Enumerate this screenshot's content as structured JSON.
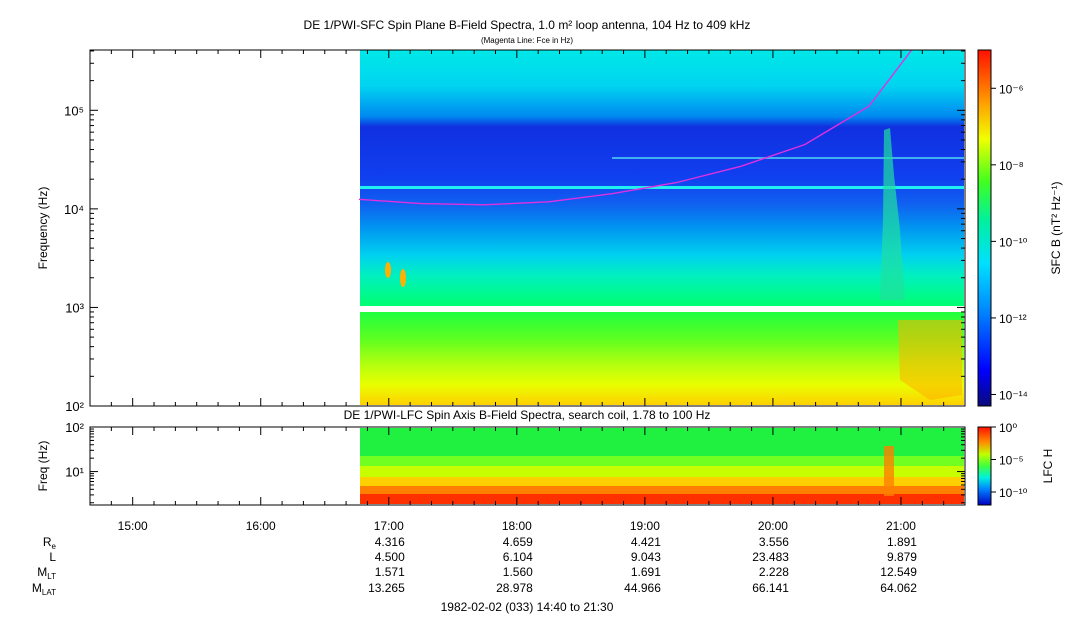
{
  "chart_data": [
    {
      "type": "heatmap",
      "title": "DE 1/PWI-SFC  Spin Plane B-Field Spectra, 1.0 m² loop antenna, 104 Hz to 409 kHz",
      "subtitle": "(Magenta Line: Fce in Hz)",
      "ylabel": "Frequency (Hz)",
      "yscale": "log",
      "ylim": [
        100,
        409000
      ],
      "y_ticks": [
        "10²",
        "10³",
        "10⁴",
        "10⁵"
      ],
      "data_start": "16:46",
      "data_end": "21:30",
      "colorbar": {
        "label": "SFC B (nT² Hz⁻¹)",
        "scale": "log",
        "range": [
          5e-15,
          1e-05
        ],
        "ticks": [
          "10⁻⁶",
          "10⁻⁸",
          "10⁻¹⁰",
          "10⁻¹²",
          "10⁻¹⁴"
        ]
      },
      "fce_line": {
        "color": "#e030e0",
        "times": [
          "16:46",
          "17:15",
          "17:45",
          "18:15",
          "18:45",
          "19:15",
          "19:45",
          "20:15",
          "20:45",
          "21:05"
        ],
        "values": [
          12500,
          11300,
          11000,
          11800,
          14300,
          18500,
          27000,
          45000,
          110000,
          409000
        ]
      }
    },
    {
      "type": "heatmap",
      "title": "DE 1/PWI-LFC  Spin Axis B-Field Spectra, search coil, 1.78 to 100 Hz",
      "ylabel": "Freq (Hz)",
      "yscale": "log",
      "ylim": [
        1.78,
        100
      ],
      "y_ticks": [
        "10²",
        "10¹"
      ],
      "data_start": "16:46",
      "data_end": "21:30",
      "colorbar": {
        "label": "LFC H",
        "scale": "log",
        "range": [
          1e-12,
          1
        ],
        "ticks": [
          "10⁰",
          "10⁻⁵",
          "10⁻¹⁰"
        ]
      }
    }
  ],
  "time_axis": {
    "start": "14:40",
    "end": "21:30",
    "tick_labels": [
      "15:00",
      "16:00",
      "17:00",
      "18:00",
      "19:00",
      "20:00",
      "21:00"
    ]
  },
  "ephemeris": {
    "rows": [
      {
        "label": "R",
        "sub": "e",
        "values": [
          "",
          "",
          "4.316",
          "4.659",
          "4.421",
          "3.556",
          "1.891"
        ]
      },
      {
        "label": "L",
        "sub": "",
        "values": [
          "",
          "",
          "4.500",
          "6.104",
          "9.043",
          "23.483",
          "9.879"
        ]
      },
      {
        "label": "M",
        "sub": "LT",
        "values": [
          "",
          "",
          "1.571",
          "1.560",
          "1.691",
          "2.228",
          "12.549"
        ]
      },
      {
        "label": "M",
        "sub": "LAT",
        "values": [
          "",
          "",
          "13.265",
          "28.978",
          "44.966",
          "66.141",
          "64.062"
        ]
      }
    ]
  },
  "footer": "1982-02-02 (033) 14:40 to 21:30"
}
